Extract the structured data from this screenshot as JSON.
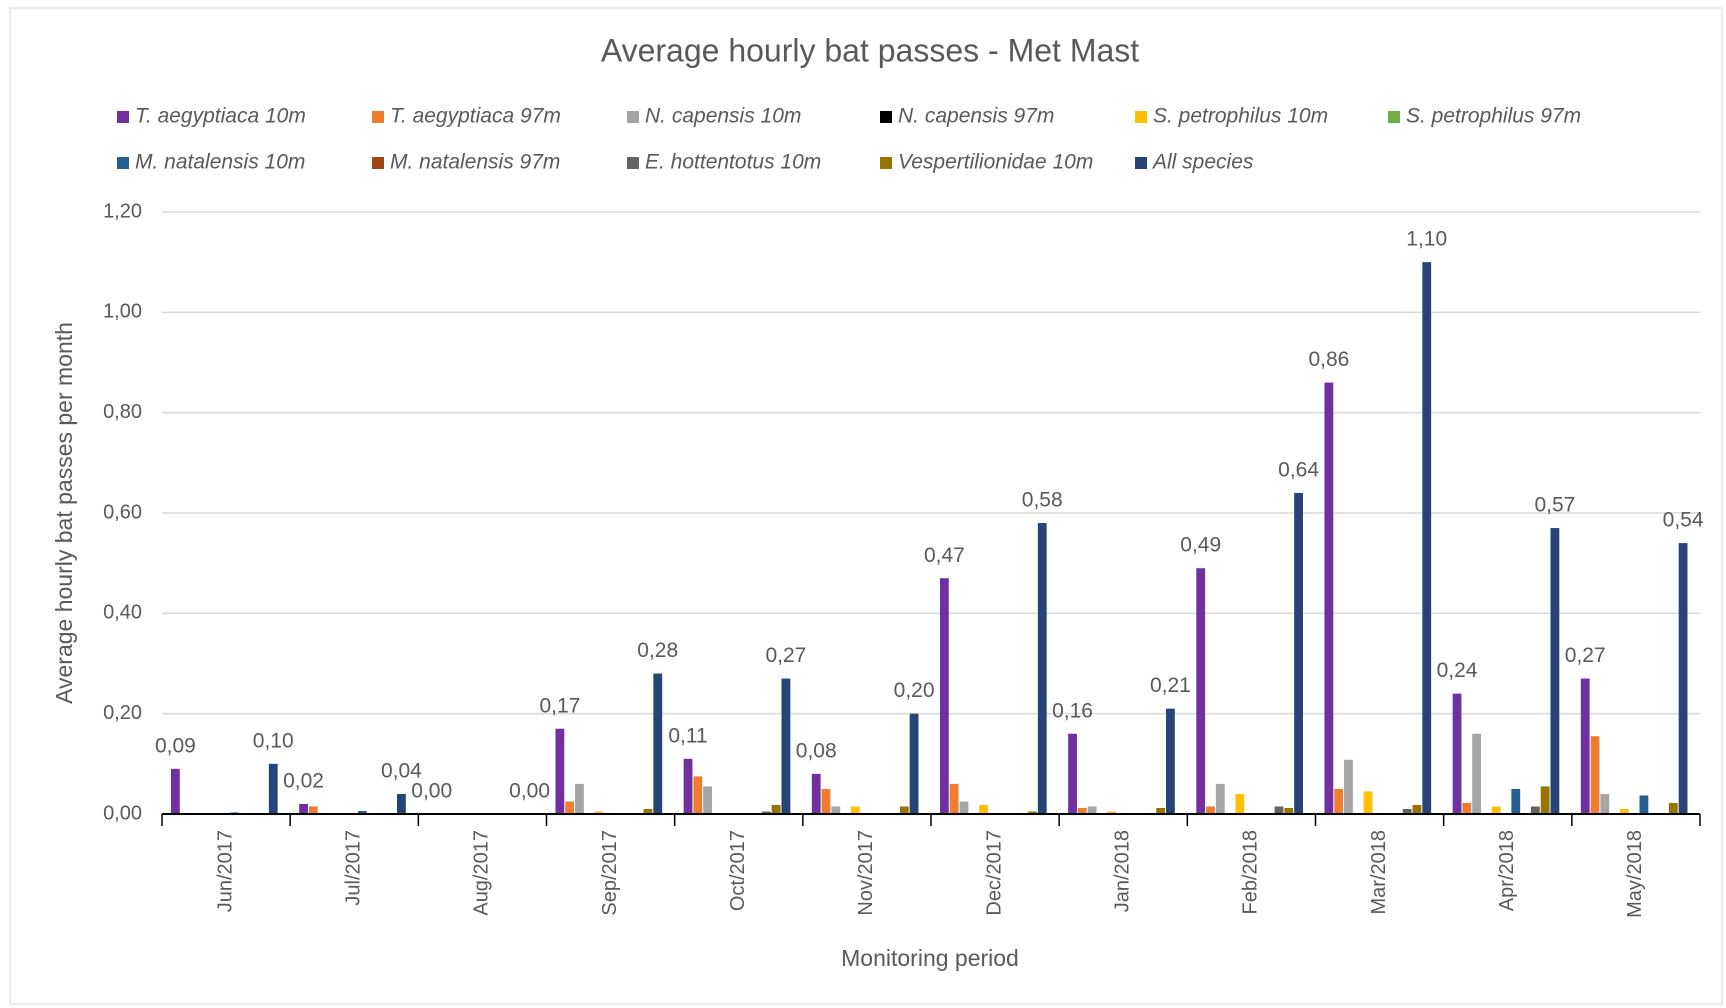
{
  "chart_data": {
    "type": "bar",
    "title": "Average hourly bat passes - Met Mast",
    "y_label": "Average hourly bat passes per month",
    "x_label": "Monitoring period",
    "categories": [
      "Jun/2017",
      "Jul/2017",
      "Aug/2017",
      "Sep/2017",
      "Oct/2017",
      "Nov/2017",
      "Dec/2017",
      "Jan/2018",
      "Feb/2018",
      "Mar/2018",
      "Apr/2018",
      "May/2018"
    ],
    "ylim": [
      0,
      1.2
    ],
    "yticks": [
      {
        "value": 0,
        "label": "0,00"
      },
      {
        "value": 0.2,
        "label": "0,20"
      },
      {
        "value": 0.4,
        "label": "0,40"
      },
      {
        "value": 0.6,
        "label": "0,60"
      },
      {
        "value": 0.8,
        "label": "0,80"
      },
      {
        "value": 1.0,
        "label": "1,00"
      },
      {
        "value": 1.2,
        "label": "1,20"
      }
    ],
    "grid": true,
    "legend": "top",
    "series": [
      {
        "name": "T. aegyptiaca 10m",
        "color": "#7030a0",
        "values": [
          0.09,
          0.02,
          0,
          0.17,
          0.11,
          0.08,
          0.47,
          0.16,
          0.49,
          0.86,
          0.24,
          0.27
        ],
        "value_labels": [
          "0,09",
          "0,02",
          "0,00",
          "0,17",
          "0,11",
          "0,08",
          "0,47",
          "0,16",
          "0,49",
          "0,86",
          "0,24",
          "0,27"
        ]
      },
      {
        "name": "T. aegyptiaca 97m",
        "color": "#ed7d31",
        "values": [
          0,
          0.015,
          0,
          0.025,
          0.075,
          0.05,
          0.06,
          0.012,
          0.015,
          0.05,
          0.022,
          0.155
        ]
      },
      {
        "name": "N. capensis 10m",
        "color": "#a5a5a5",
        "values": [
          0,
          0,
          0,
          0.06,
          0.055,
          0.015,
          0.025,
          0.015,
          0.06,
          0.108,
          0.16,
          0.04
        ]
      },
      {
        "name": "N. capensis 97m",
        "color": "#000000",
        "values": [
          0,
          0,
          0,
          0,
          0,
          0,
          0,
          0,
          0,
          0,
          0,
          0
        ]
      },
      {
        "name": "S. petrophilus 10m",
        "color": "#ffc000",
        "values": [
          0,
          0,
          0,
          0.005,
          0,
          0.015,
          0.018,
          0.005,
          0.04,
          0.045,
          0.015,
          0.01
        ]
      },
      {
        "name": "S. petrophilus 97m",
        "color": "#70ad47",
        "values": [
          0,
          0,
          0,
          0,
          0,
          0,
          0,
          0,
          0,
          0,
          0,
          0
        ]
      },
      {
        "name": "M. natalensis 10m",
        "color": "#255e91",
        "values": [
          0.003,
          0.006,
          0,
          0,
          0,
          0,
          0,
          0,
          0,
          0,
          0.05,
          0.037
        ]
      },
      {
        "name": "M. natalensis 97m",
        "color": "#9e480e",
        "values": [
          0,
          0,
          0,
          0,
          0,
          0,
          0,
          0,
          0,
          0,
          0,
          0
        ]
      },
      {
        "name": "E. hottentotus 10m",
        "color": "#636363",
        "values": [
          0,
          0,
          0,
          0,
          0.005,
          0,
          0,
          0,
          0.015,
          0.01,
          0.015,
          0
        ]
      },
      {
        "name": "Vespertilionidae 10m",
        "color": "#997300",
        "values": [
          0,
          0,
          0,
          0.01,
          0.018,
          0.015,
          0.005,
          0.012,
          0.012,
          0.018,
          0.055,
          0.022
        ]
      },
      {
        "name": "All species",
        "color": "#264478",
        "values": [
          0.1,
          0.04,
          0,
          0.28,
          0.27,
          0.2,
          0.58,
          0.21,
          0.64,
          1.1,
          0.57,
          0.54
        ],
        "value_labels": [
          "0,10",
          "0,04",
          "0,00",
          "0,28",
          "0,27",
          "0,20",
          "0,58",
          "0,21",
          "0,64",
          "1,10",
          "0,57",
          "0,54"
        ]
      }
    ]
  }
}
